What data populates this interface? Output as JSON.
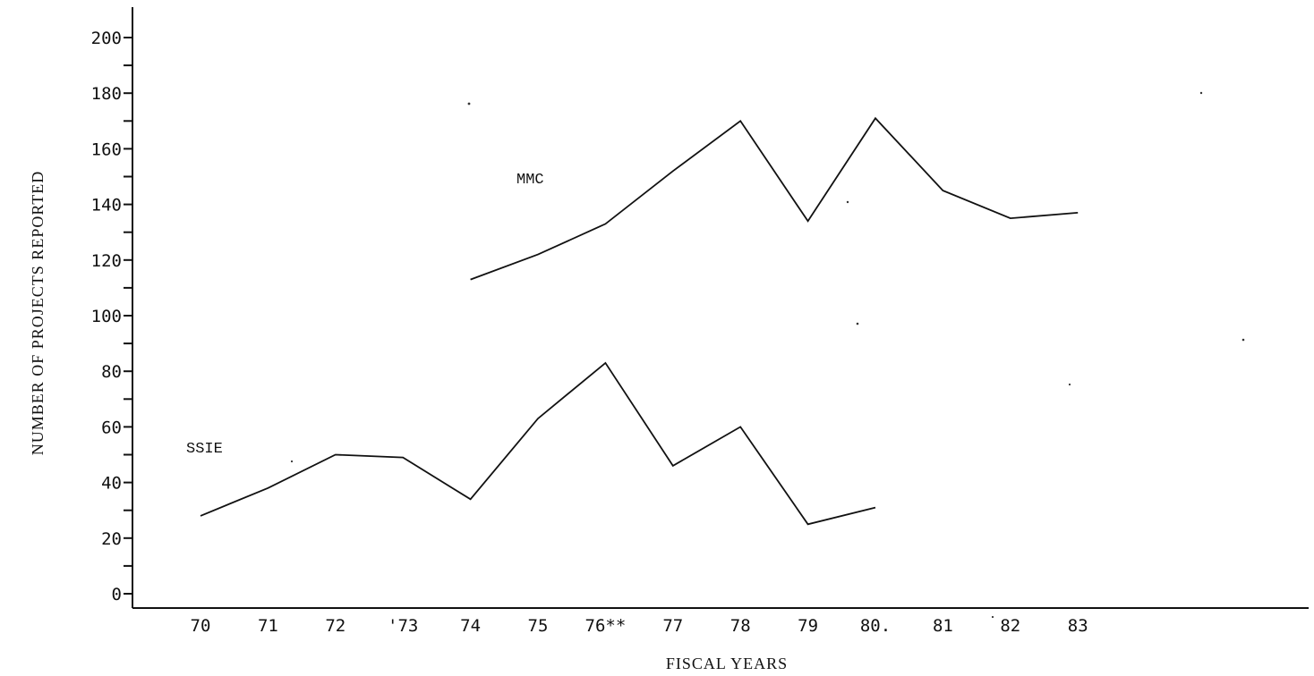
{
  "chart_data": {
    "type": "line",
    "title": "",
    "xlabel": "FISCAL YEARS",
    "ylabel": "NUMBER OF PROJECTS REPORTED",
    "categories": [
      "70",
      "71",
      "72",
      "'73",
      "74",
      "75",
      "76**",
      "77",
      "78",
      "79",
      "80.",
      "81",
      "82",
      "83"
    ],
    "yticks": [
      "0",
      "20",
      "40",
      "60",
      "80",
      "100",
      "120",
      "140",
      "160",
      "180",
      "200"
    ],
    "ylim": [
      0,
      210
    ],
    "grid": false,
    "legend": "inline labels",
    "series": [
      {
        "name": "SSIE",
        "values": [
          28,
          38,
          50,
          49,
          34,
          63,
          83,
          46,
          60,
          25,
          31,
          null,
          null,
          null
        ]
      },
      {
        "name": "MMC",
        "values": [
          null,
          null,
          null,
          null,
          113,
          122,
          133,
          152,
          170,
          134,
          171,
          145,
          135,
          137
        ]
      }
    ]
  }
}
